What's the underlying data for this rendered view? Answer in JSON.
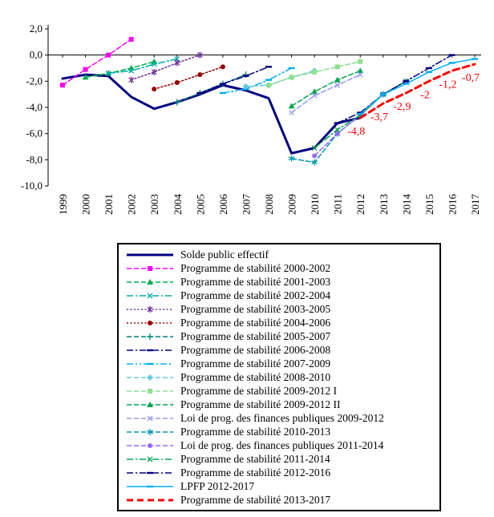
{
  "chart_data": {
    "type": "line",
    "title": "",
    "x": [
      1999,
      2000,
      2001,
      2002,
      2003,
      2004,
      2005,
      2006,
      2007,
      2008,
      2009,
      2010,
      2011,
      2012,
      2013,
      2014,
      2015,
      2016,
      2017
    ],
    "ylim": [
      -10,
      2
    ],
    "grid": false,
    "legend_position": "bottom-box",
    "y_ticks": [
      {
        "v": 2,
        "label": "2,0"
      },
      {
        "v": 0,
        "label": "0,0"
      },
      {
        "v": -2,
        "label": "-2,0"
      },
      {
        "v": -4,
        "label": "-4,0"
      },
      {
        "v": -6,
        "label": "-6,0"
      },
      {
        "v": -8,
        "label": "-8,0"
      },
      {
        "v": -10,
        "label": "-10,0"
      }
    ],
    "series": [
      {
        "name": "Solde public effectif",
        "color": "#000080",
        "dash": "solid",
        "width": 3,
        "marker": "none",
        "start": 1999,
        "values": [
          -1.8,
          -1.5,
          -1.6,
          -3.2,
          -4.1,
          -3.6,
          -3.0,
          -2.3,
          -2.7,
          -3.3,
          -7.5,
          -7.1,
          -5.2,
          -4.8
        ]
      },
      {
        "name": "Programme de stabilité 2000-2002",
        "color": "#FF00FF",
        "dash": "dash",
        "width": 1.5,
        "marker": "square",
        "start": 1999,
        "values": [
          -2.3,
          -1.1,
          0.0,
          1.2
        ]
      },
      {
        "name": "Programme de stabilité 2001-2003",
        "color": "#00B050",
        "dash": "dash",
        "width": 1.5,
        "marker": "triangle",
        "start": 2000,
        "values": [
          -1.7,
          -1.4,
          -1.0,
          -0.5
        ]
      },
      {
        "name": "Programme de stabilité 2002-2004",
        "color": "#00AAAA",
        "dash": "dashdot",
        "width": 1.5,
        "marker": "x",
        "start": 2001,
        "values": [
          -1.4,
          -1.2,
          -0.7,
          -0.3
        ]
      },
      {
        "name": "Programme de stabilité 2003-2005",
        "color": "#7030A0",
        "dash": "dot",
        "width": 1.5,
        "marker": "star",
        "start": 2002,
        "values": [
          -1.9,
          -1.3,
          -0.6,
          0.0
        ]
      },
      {
        "name": "Programme de stabilité 2004-2006",
        "color": "#990000",
        "dash": "dot",
        "width": 1.5,
        "marker": "circle",
        "start": 2003,
        "values": [
          -2.6,
          -2.1,
          -1.5,
          -0.9
        ]
      },
      {
        "name": "Programme de stabilité 2005-2007",
        "color": "#008080",
        "dash": "dash",
        "width": 1.5,
        "marker": "plus",
        "start": 2004,
        "values": [
          -3.6,
          -2.9,
          -2.2,
          -1.5
        ]
      },
      {
        "name": "Programme de stabilité 2006-2008",
        "color": "#000080",
        "dash": "dashdot",
        "width": 1.5,
        "marker": "dash",
        "start": 2005,
        "values": [
          -2.9,
          -2.2,
          -1.6,
          -0.9
        ]
      },
      {
        "name": "Programme de stabilité 2007-2009",
        "color": "#00B0F0",
        "dash": "dashdotdot",
        "width": 1.5,
        "marker": "dash",
        "start": 2006,
        "values": [
          -2.9,
          -2.6,
          -1.9,
          -1.0
        ]
      },
      {
        "name": "Programme de stabilité 2008-2010",
        "color": "#66CCE0",
        "dash": "dash",
        "width": 1.5,
        "marker": "diamond",
        "start": 2007,
        "values": [
          -2.4,
          -2.3,
          -1.7,
          -1.2
        ]
      },
      {
        "name": "Programme de stabilité 2009-2012 I",
        "color": "#8FE08F",
        "dash": "dash",
        "width": 1.5,
        "marker": "square",
        "start": 2008,
        "values": [
          -2.3,
          -1.7,
          -1.3,
          -0.9,
          -0.5
        ]
      },
      {
        "name": "Programme de stabilité 2009-2012 II",
        "color": "#00A550",
        "dash": "dash",
        "width": 1.5,
        "marker": "triangle",
        "start": 2009,
        "values": [
          -3.9,
          -2.8,
          -1.9,
          -1.2
        ]
      },
      {
        "name": "Loi de prog. des finances publiques 2009-2012",
        "color": "#9999FF",
        "dash": "dash",
        "width": 1.5,
        "marker": "x",
        "start": 2009,
        "values": [
          -4.4,
          -3.1,
          -2.3,
          -1.5
        ]
      },
      {
        "name": "Programme de stabilité 2010-2013",
        "color": "#0099AA",
        "dash": "dash",
        "width": 1.5,
        "marker": "asterisk",
        "start": 2009,
        "values": [
          -7.9,
          -8.2,
          -6.0,
          -4.6,
          -3.0
        ]
      },
      {
        "name": "Loi de prog. des finances publiques 2011-2014",
        "color": "#9966FF",
        "dash": "dash",
        "width": 1.5,
        "marker": "circle",
        "start": 2010,
        "values": [
          -7.7,
          -6.0,
          -4.6,
          -3.0,
          -2.0
        ]
      },
      {
        "name": "Programme de stabilité 2011-2014",
        "color": "#00A550",
        "dash": "dashdot",
        "width": 1.5,
        "marker": "x",
        "start": 2010,
        "values": [
          -7.1,
          -5.7,
          -4.6,
          -3.0,
          -2.0
        ]
      },
      {
        "name": "Programme de stabilité 2012-2016",
        "color": "#000080",
        "dash": "dashdot",
        "width": 1.5,
        "marker": "dash",
        "start": 2011,
        "values": [
          -5.2,
          -4.4,
          -3.0,
          -2.0,
          -1.0,
          0.0
        ]
      },
      {
        "name": "LPFP 2012-2017",
        "color": "#00B0F0",
        "dash": "solid",
        "width": 1.5,
        "marker": "dash",
        "start": 2012,
        "values": [
          -4.5,
          -3.0,
          -2.2,
          -1.3,
          -0.6,
          -0.3
        ]
      },
      {
        "name": "Programme de stabilité 2013-2017",
        "color": "#FF0000",
        "dash": "longdash",
        "width": 3,
        "marker": "none",
        "start": 2012,
        "values": [
          -4.8,
          -3.7,
          -2.9,
          -2.0,
          -1.2,
          -0.7
        ]
      }
    ],
    "annotations": {
      "color": "#FF0000",
      "items": [
        {
          "year": 2012,
          "value": -4.8,
          "label": "-4,8"
        },
        {
          "year": 2013,
          "value": -3.7,
          "label": "-3,7"
        },
        {
          "year": 2014,
          "value": -2.9,
          "label": "-2,9"
        },
        {
          "year": 2015,
          "value": -2.0,
          "label": "-2"
        },
        {
          "year": 2016,
          "value": -1.2,
          "label": "-1,2"
        },
        {
          "year": 2017,
          "value": -0.7,
          "label": "-0,7"
        }
      ]
    }
  }
}
